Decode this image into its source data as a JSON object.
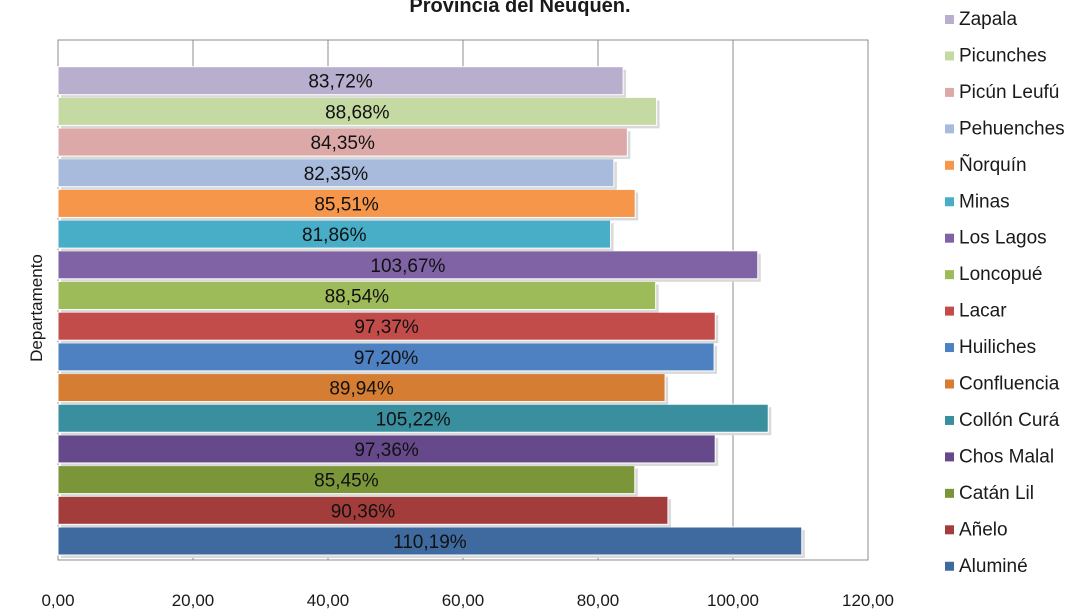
{
  "chart_data": {
    "type": "bar",
    "orientation": "horizontal",
    "title": "Provincia del Neuquén.",
    "xlabel": "",
    "ylabel": "Departamento",
    "xlim": [
      0,
      120
    ],
    "x_ticks": [
      "0,00",
      "20,00",
      "40,00",
      "60,00",
      "80,00",
      "100,00",
      "120,00"
    ],
    "grid": "vertical gridlines",
    "legend_position": "right",
    "categories": [
      "Aluminé",
      "Añelo",
      "Catán Lil",
      "Chos Malal",
      "Collón Curá",
      "Confluencia",
      "Huiliches",
      "Lacar",
      "Loncopué",
      "Los Lagos",
      "Minas",
      "Ñorquín",
      "Pehuenches",
      "Picún Leufú",
      "Picunches",
      "Zapala"
    ],
    "values": [
      110.19,
      90.36,
      85.45,
      97.36,
      105.22,
      89.94,
      97.2,
      97.37,
      88.54,
      103.67,
      81.86,
      85.51,
      82.35,
      84.35,
      88.68,
      83.72
    ],
    "value_labels": [
      "110,19%",
      "90,36%",
      "85,45%",
      "97,36%",
      "105,22%",
      "89,94%",
      "97,20%",
      "97,37%",
      "88,54%",
      "103,67%",
      "81,86%",
      "85,51%",
      "82,35%",
      "84,35%",
      "88,68%",
      "83,72%"
    ],
    "colors": [
      "#3e6aa0",
      "#a23d3b",
      "#7a9639",
      "#65498a",
      "#3a8f9f",
      "#d57e33",
      "#4d81c2",
      "#c24c49",
      "#9dbb58",
      "#7f63a4",
      "#48adc7",
      "#f6964a",
      "#a9bbdc",
      "#dca9a8",
      "#c5d9a2",
      "#b8aecd"
    ]
  }
}
